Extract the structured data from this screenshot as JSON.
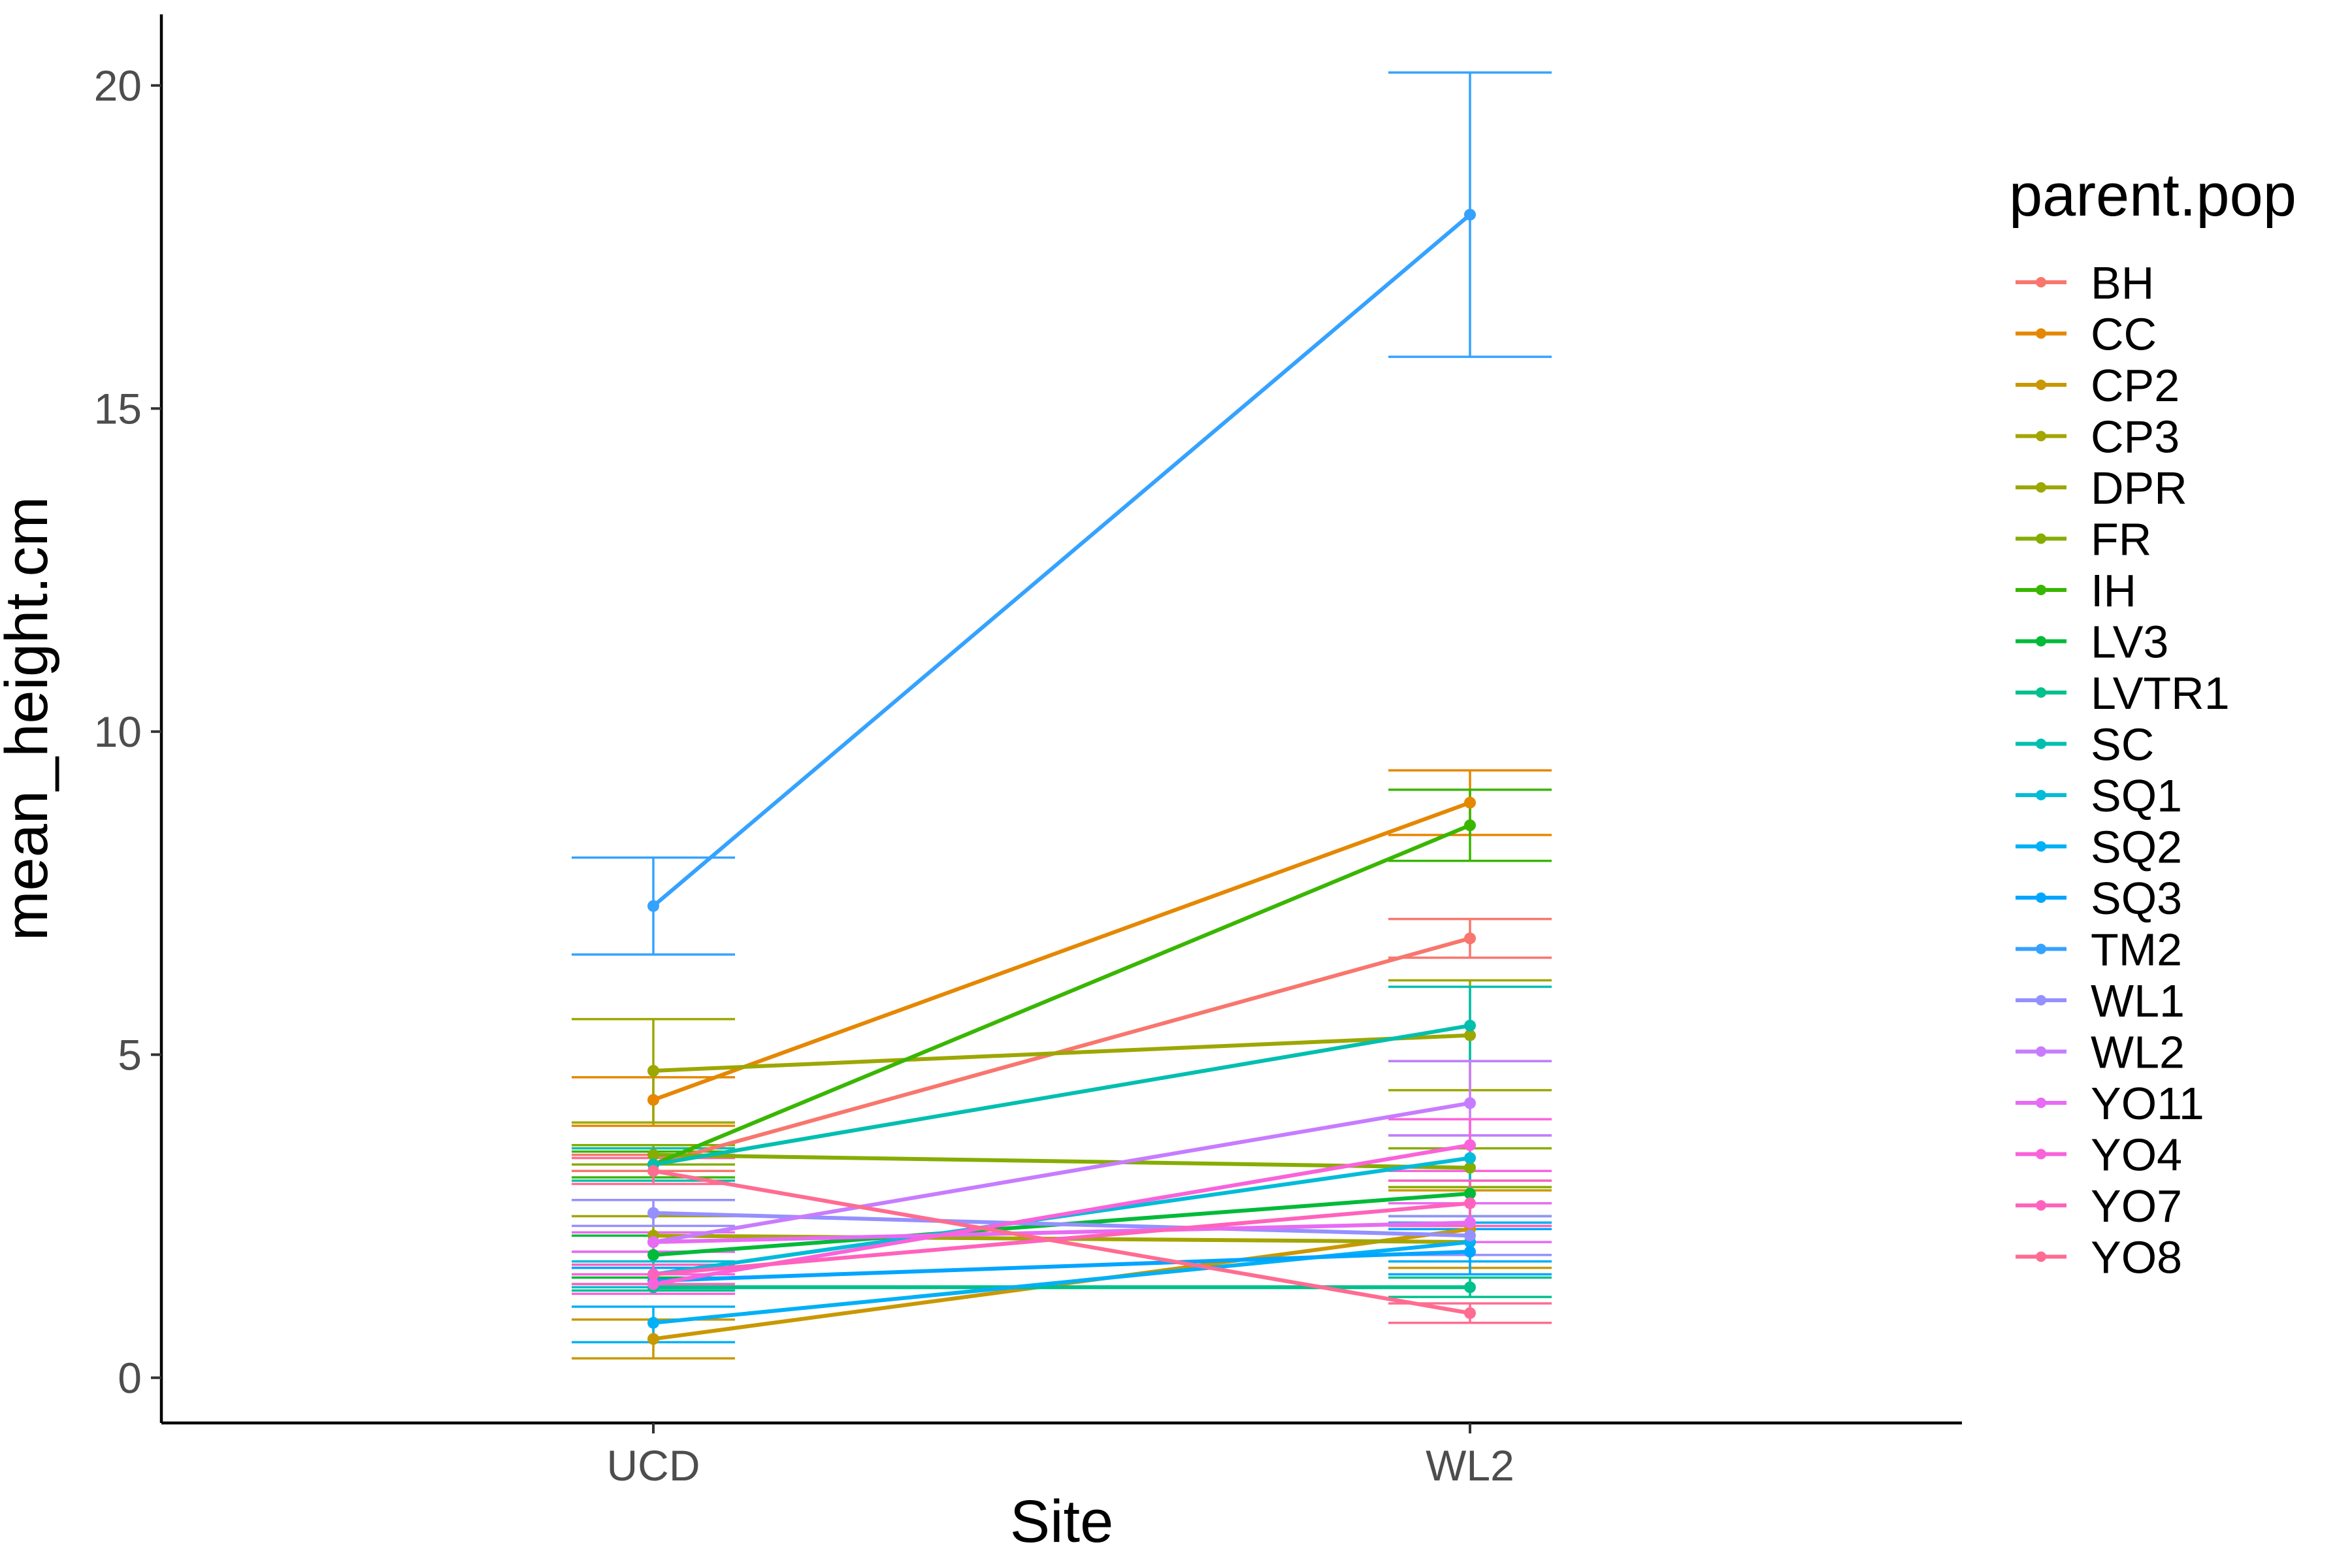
{
  "chart_data": {
    "type": "line",
    "xlabel": "Site",
    "ylabel": "mean_height.cm",
    "categories": [
      "UCD",
      "WL2"
    ],
    "ylim": [
      -0.7,
      21.1
    ],
    "y_ticks": [
      0,
      5,
      10,
      15,
      20
    ],
    "grid": false,
    "error_bars": true,
    "legend": {
      "title": "parent.pop",
      "position": "right"
    },
    "series": [
      {
        "name": "BH",
        "color": "#F8766D",
        "values": [
          3.3,
          6.8
        ],
        "lower": [
          3.2,
          6.5
        ],
        "upper": [
          3.45,
          7.1
        ]
      },
      {
        "name": "CC",
        "color": "#E58700",
        "values": [
          4.3,
          8.9
        ],
        "lower": [
          3.9,
          8.4
        ],
        "upper": [
          4.65,
          9.4
        ]
      },
      {
        "name": "CP2",
        "color": "#C99800",
        "values": [
          0.6,
          2.3
        ],
        "lower": [
          0.3,
          1.7
        ],
        "upper": [
          0.9,
          2.9
        ]
      },
      {
        "name": "CP3",
        "color": "#A3A500",
        "values": [
          2.2,
          2.1
        ],
        "lower": [
          1.95,
          1.8
        ],
        "upper": [
          2.5,
          2.4
        ]
      },
      {
        "name": "DPR",
        "color": "#9CA700",
        "values": [
          4.75,
          5.3
        ],
        "lower": [
          3.95,
          4.45
        ],
        "upper": [
          5.55,
          6.15
        ]
      },
      {
        "name": "FR",
        "color": "#86AC00",
        "values": [
          3.45,
          3.25
        ],
        "lower": [
          3.3,
          2.95
        ],
        "upper": [
          3.6,
          3.55
        ]
      },
      {
        "name": "IH",
        "color": "#39B600",
        "values": [
          3.3,
          8.55
        ],
        "lower": [
          3.1,
          8.0
        ],
        "upper": [
          3.5,
          9.1
        ]
      },
      {
        "name": "LV3",
        "color": "#00BA38",
        "values": [
          1.9,
          2.85
        ],
        "lower": [
          1.55,
          2.5
        ],
        "upper": [
          2.2,
          3.2
        ]
      },
      {
        "name": "LVTR1",
        "color": "#00C08B",
        "values": [
          1.4,
          1.4
        ],
        "lower": [
          1.35,
          1.25
        ],
        "upper": [
          1.45,
          1.55
        ]
      },
      {
        "name": "SC",
        "color": "#00BFAF",
        "values": [
          3.3,
          5.45
        ],
        "lower": [
          3.05,
          4.9
        ],
        "upper": [
          3.55,
          6.05
        ]
      },
      {
        "name": "SQ1",
        "color": "#00BCD8",
        "values": [
          1.6,
          3.4
        ],
        "lower": [
          1.4,
          3.05
        ],
        "upper": [
          1.8,
          3.75
        ]
      },
      {
        "name": "SQ2",
        "color": "#00B0F6",
        "values": [
          0.85,
          2.1
        ],
        "lower": [
          0.55,
          1.8
        ],
        "upper": [
          1.1,
          2.4
        ]
      },
      {
        "name": "SQ3",
        "color": "#00A5FF",
        "values": [
          1.5,
          1.95
        ],
        "lower": [
          1.3,
          1.6
        ],
        "upper": [
          1.7,
          2.3
        ]
      },
      {
        "name": "TM2",
        "color": "#35A2FF",
        "values": [
          7.3,
          18.0
        ],
        "lower": [
          6.55,
          15.8
        ],
        "upper": [
          8.05,
          20.2
        ]
      },
      {
        "name": "WL1",
        "color": "#9590FF",
        "values": [
          2.55,
          2.2
        ],
        "lower": [
          2.35,
          1.9
        ],
        "upper": [
          2.75,
          2.5
        ]
      },
      {
        "name": "WL2",
        "color": "#C77CFF",
        "values": [
          2.1,
          4.25
        ],
        "lower": [
          1.95,
          3.75
        ],
        "upper": [
          2.25,
          4.9
        ]
      },
      {
        "name": "YO11",
        "color": "#E76BF3",
        "values": [
          2.1,
          2.4
        ],
        "lower": [
          1.95,
          2.1
        ],
        "upper": [
          2.25,
          2.7
        ]
      },
      {
        "name": "YO4",
        "color": "#FA62DB",
        "values": [
          1.45,
          3.6
        ],
        "lower": [
          1.3,
          3.2
        ],
        "upper": [
          1.6,
          4.0
        ]
      },
      {
        "name": "YO7",
        "color": "#FF62BC",
        "values": [
          1.6,
          2.7
        ],
        "lower": [
          1.45,
          2.35
        ],
        "upper": [
          1.75,
          3.05
        ]
      },
      {
        "name": "YO8",
        "color": "#FF6C91",
        "values": [
          3.2,
          1.0
        ],
        "lower": [
          3.0,
          0.85
        ],
        "upper": [
          3.4,
          1.15
        ]
      }
    ]
  }
}
